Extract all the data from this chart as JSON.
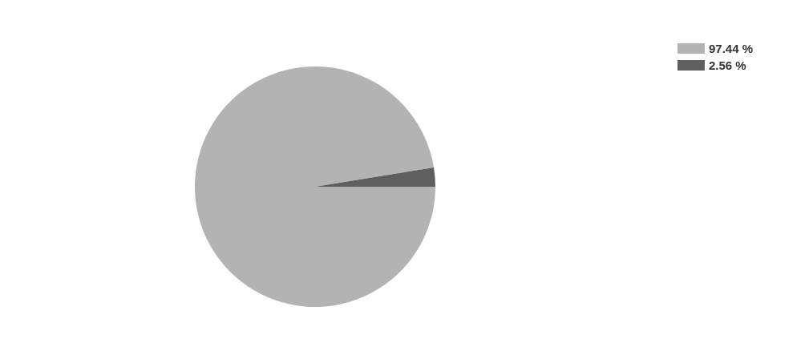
{
  "chart_data": {
    "type": "pie",
    "categories": [
      "97.44 %",
      "2.56 %"
    ],
    "values": [
      97.44,
      2.56
    ],
    "colors": [
      "#b3b3b3",
      "#5f5f5f"
    ],
    "legend": "top right"
  }
}
